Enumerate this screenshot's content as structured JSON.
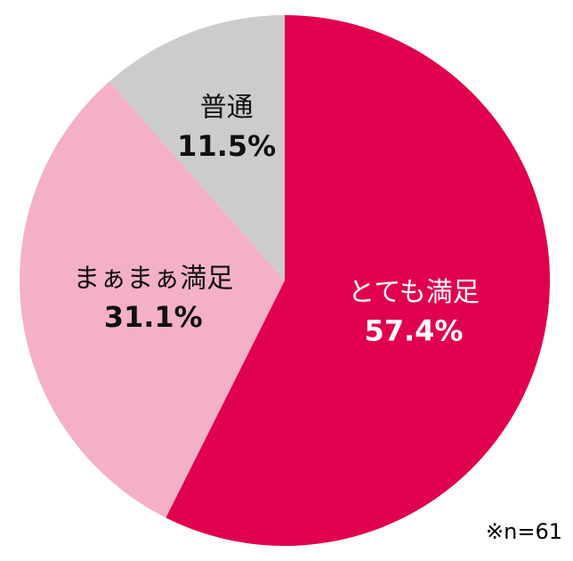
{
  "chart_data": {
    "type": "pie",
    "categories": [
      "とても満足",
      "まぁまぁ満足",
      "普通"
    ],
    "values": [
      57.4,
      31.1,
      11.5
    ],
    "value_labels": [
      "57.4%",
      "31.1%",
      "11.5%"
    ],
    "colors": [
      "#e0004f",
      "#f4b0c8",
      "#cccccc"
    ],
    "note": "※n=61"
  }
}
